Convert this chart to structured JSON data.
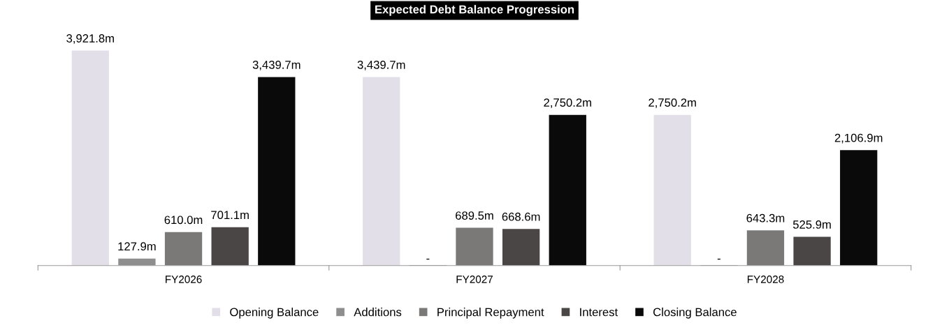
{
  "chart_data": {
    "type": "bar",
    "title": "Expected Debt Balance Progression",
    "categories": [
      "FY2026",
      "FY2027",
      "FY2028"
    ],
    "series": [
      {
        "name": "Opening Balance",
        "color": "#e2dfe9",
        "values": [
          3921.8,
          3439.7,
          2750.2
        ],
        "value_labels": [
          "3,921.8m",
          "3,439.7m",
          "2,750.2m"
        ]
      },
      {
        "name": "Additions",
        "color": "#8e8e8e",
        "values": [
          127.9,
          0,
          0
        ],
        "value_labels": [
          "127.9m",
          "-",
          "-"
        ]
      },
      {
        "name": "Principal Repayment",
        "color": "#7b7878",
        "values": [
          610.0,
          689.5,
          643.3
        ],
        "value_labels": [
          "610.0m",
          "689.5m",
          "643.3m"
        ]
      },
      {
        "name": "Interest",
        "color": "#4a4646",
        "values": [
          701.1,
          668.6,
          525.9
        ],
        "value_labels": [
          "701.1m",
          "668.6m",
          "525.9m"
        ]
      },
      {
        "name": "Closing Balance",
        "color": "#0a0a0a",
        "values": [
          3439.7,
          2750.2,
          2106.9
        ],
        "value_labels": [
          "3,439.7m",
          "2,750.2m",
          "2,106.9m"
        ]
      }
    ],
    "legend": "bottom",
    "grid": false
  }
}
